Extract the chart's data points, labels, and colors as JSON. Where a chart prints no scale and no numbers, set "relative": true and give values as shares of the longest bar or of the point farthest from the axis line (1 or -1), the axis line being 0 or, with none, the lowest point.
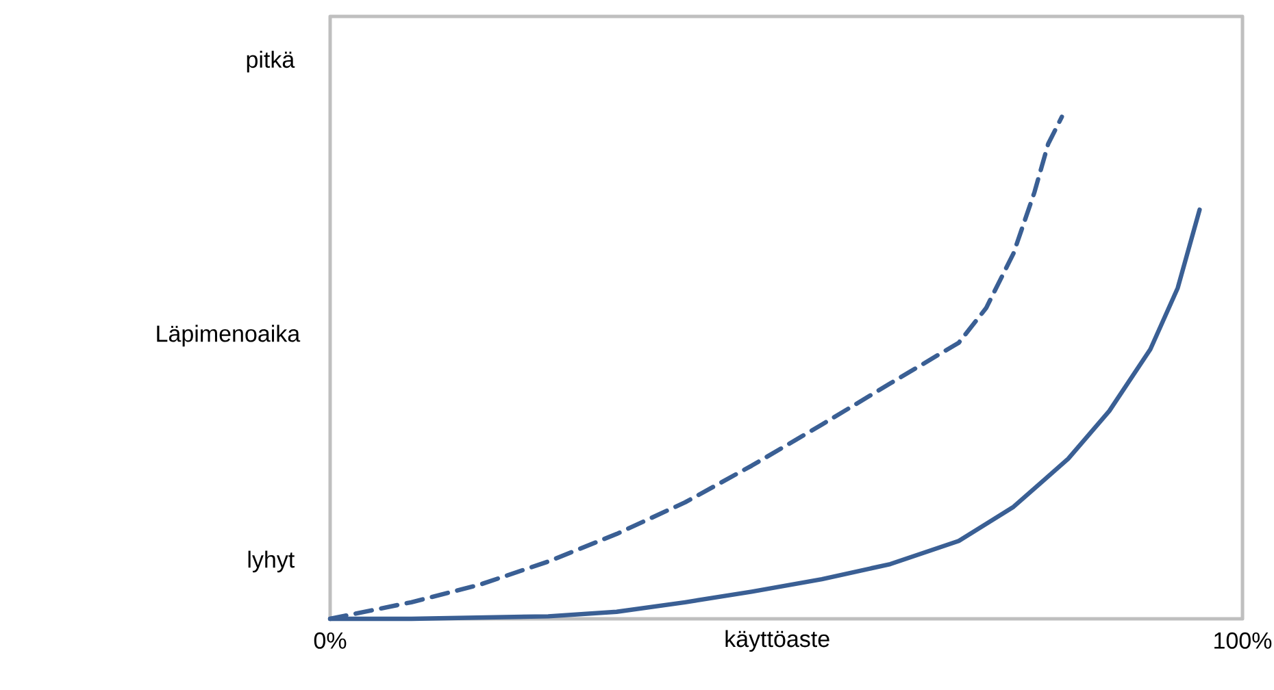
{
  "chart_data": {
    "type": "line",
    "relative": true,
    "xlabel": "käyttöaste",
    "ylabel": "Läpimenoaika",
    "annotations": [
      "pitkä",
      "lyhyt"
    ],
    "xlim": [
      0,
      100
    ],
    "xticks": [
      {
        "value": 0,
        "label": "0%"
      },
      {
        "value": 100,
        "label": "100%"
      }
    ],
    "series": [
      {
        "color": "#3a5f94",
        "line_style": "dashed",
        "x": [
          0,
          8.9,
          16.4,
          23.9,
          31.4,
          38.9,
          46.2,
          53.9,
          61.4,
          68.9,
          71.9,
          74.9,
          77.2,
          78.7,
          80.2
        ],
        "values": [
          0,
          0.033,
          0.068,
          0.114,
          0.169,
          0.232,
          0.305,
          0.387,
          0.469,
          0.55,
          0.619,
          0.728,
          0.85,
          0.946,
          1
        ]
      },
      {
        "color": "#3a5f94",
        "line_style": "solid",
        "x": [
          0,
          8.9,
          23.9,
          31.4,
          38.9,
          46.2,
          53.9,
          61.4,
          68.9,
          74.9,
          80.9,
          85.4,
          89.9,
          92.9,
          95.3
        ],
        "values": [
          0,
          0,
          0.005,
          0.014,
          0.033,
          0.054,
          0.079,
          0.109,
          0.155,
          0.223,
          0.319,
          0.414,
          0.537,
          0.659,
          0.815
        ]
      }
    ]
  }
}
